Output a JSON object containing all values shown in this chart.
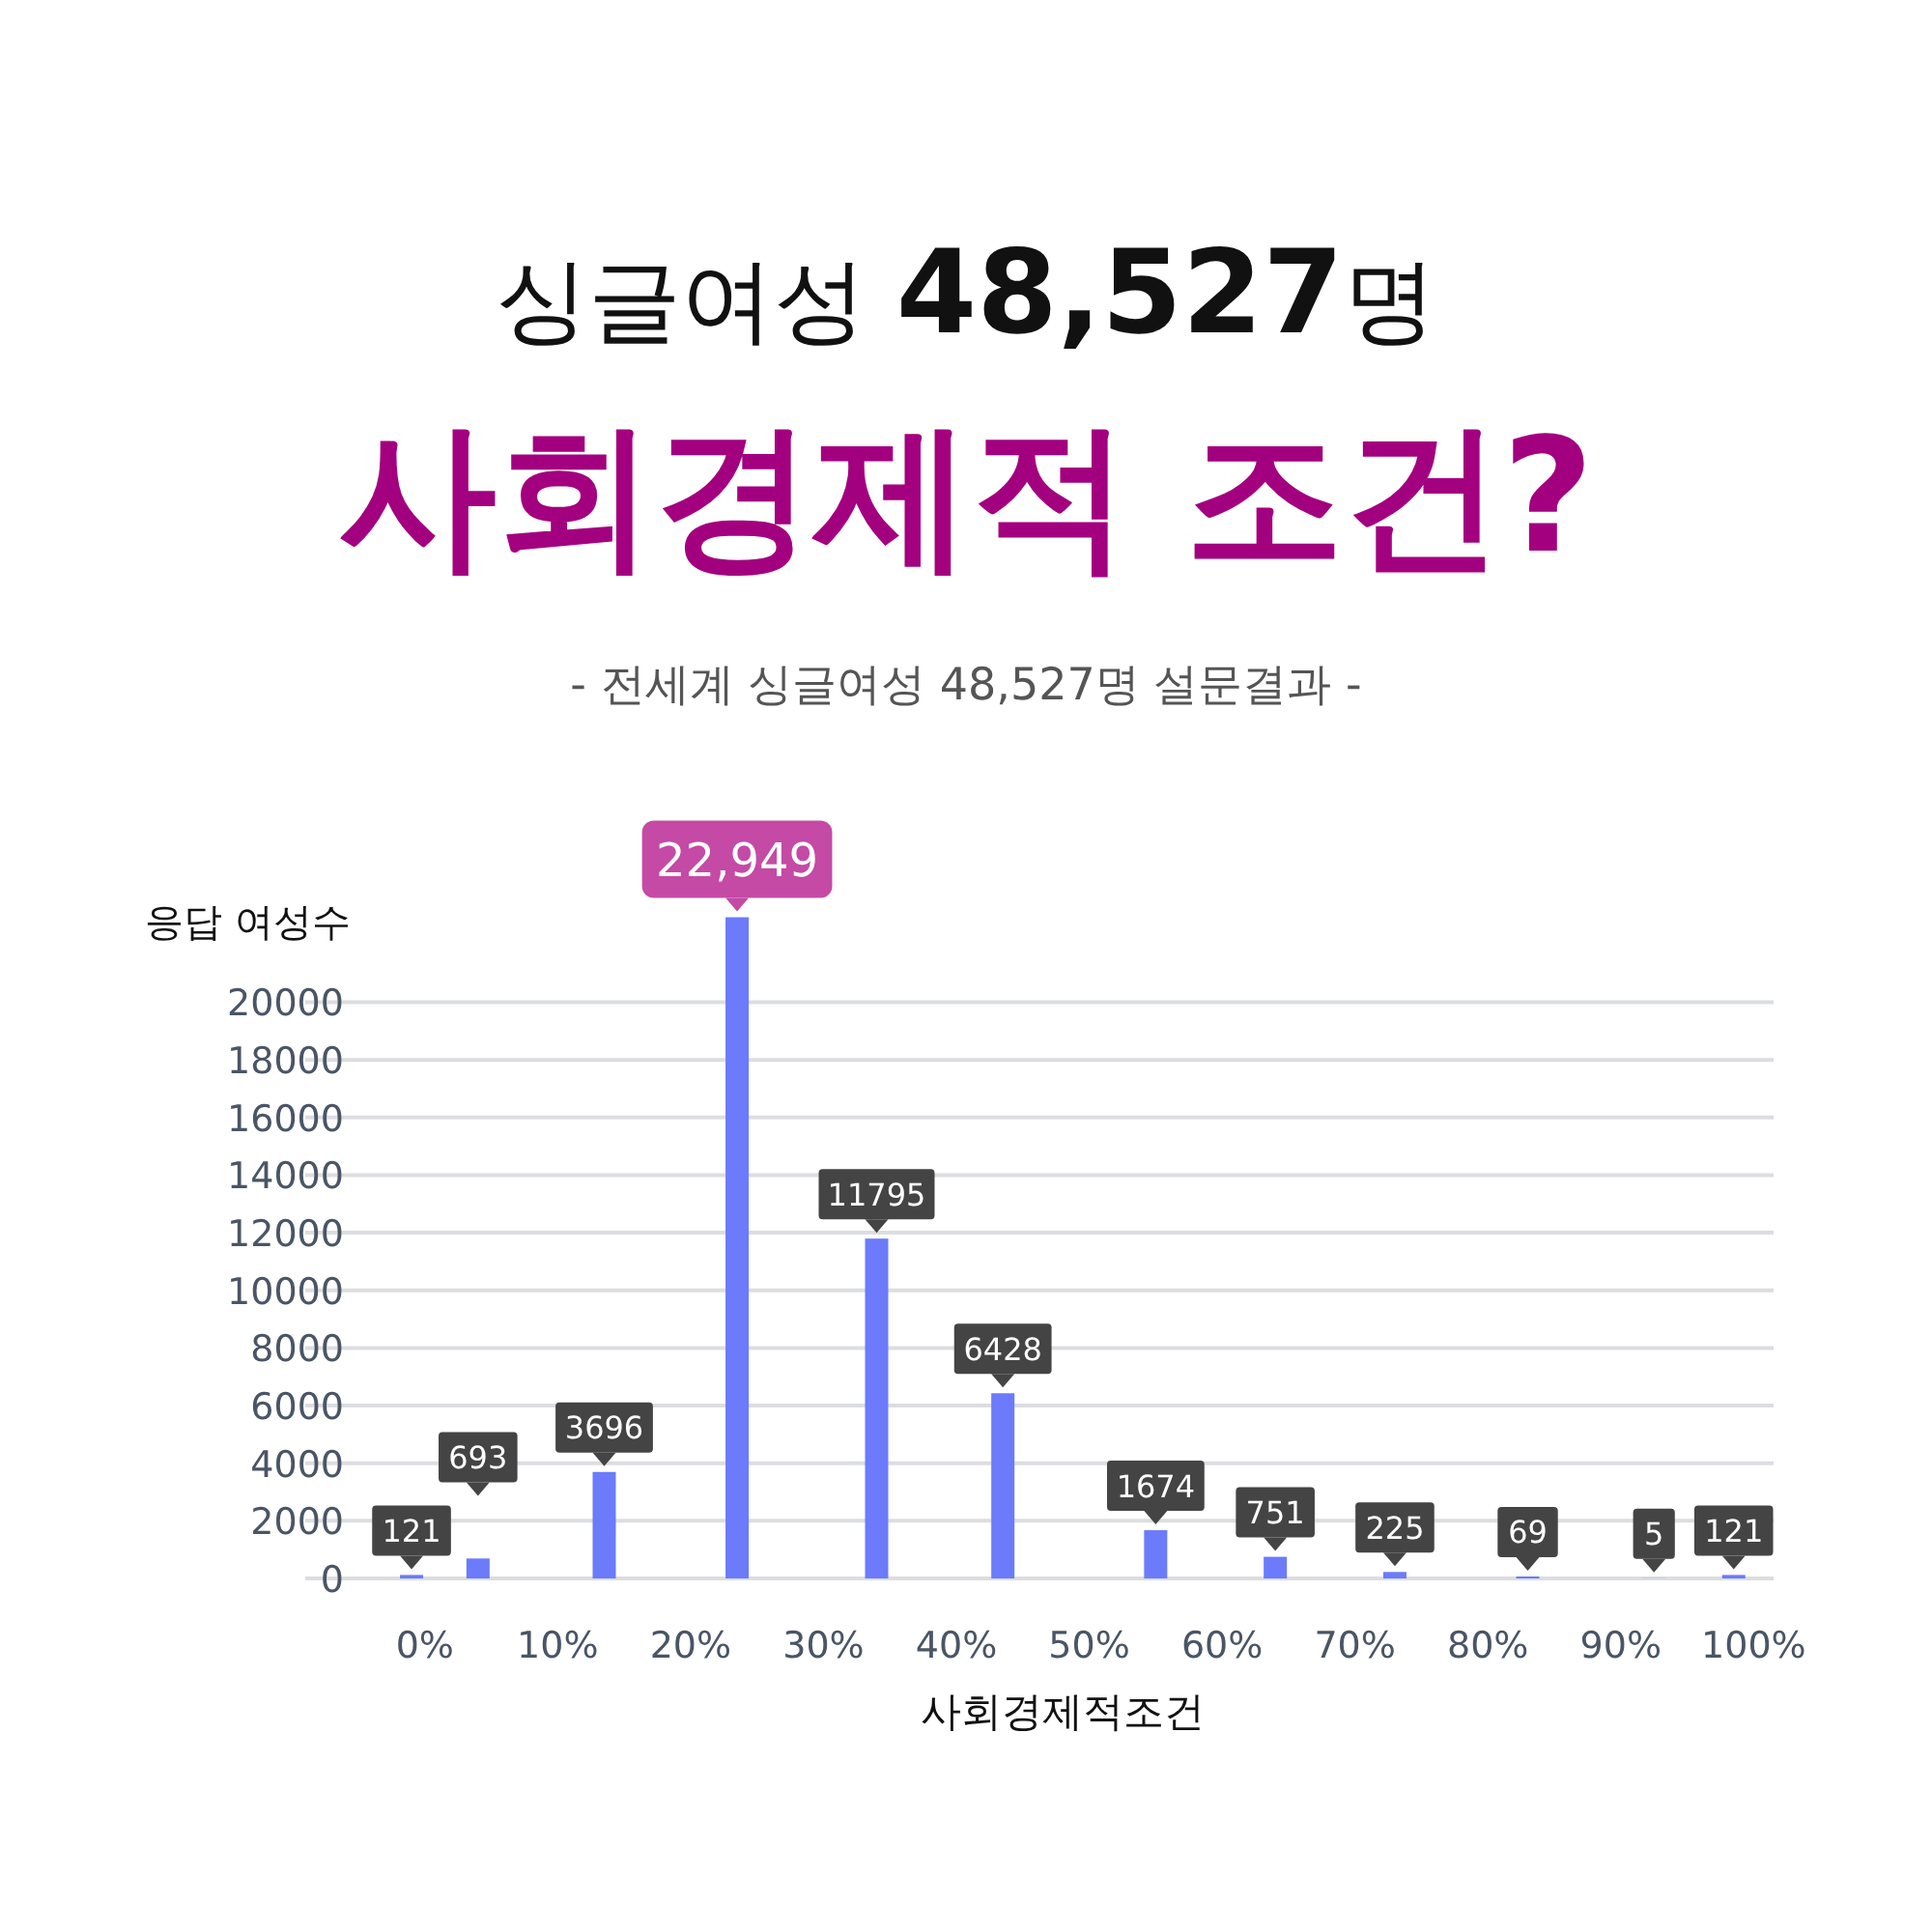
{
  "chart_data": {
    "type": "bar",
    "title": "싱글여성 **48,527**명",
    "subtitle": "사회경제적 조건?",
    "annotations": [
      "- 전세계 싱글여성 48,527명 설문결과 -"
    ],
    "xlabel": "사회경제적조건",
    "ylabel": "응답 여성수",
    "x": [
      -1,
      4,
      13.5,
      23.5,
      34,
      43.5,
      55,
      64,
      73,
      83,
      92.5,
      98.5
    ],
    "values": [
      121,
      693,
      3696,
      22949,
      11795,
      6428,
      1674,
      751,
      225,
      69,
      5,
      121
    ],
    "value_labels": [
      "121",
      "693",
      "3696",
      "22,949",
      "11795",
      "6428",
      "1674",
      "751",
      "225",
      "69",
      "5",
      "121"
    ],
    "color": "#6b7bfa",
    "xlim": [
      -9,
      101.5
    ],
    "ylim": [
      0,
      23000
    ],
    "xticks": [
      {
        "value": 0,
        "label": "0%"
      },
      {
        "value": 10,
        "label": "10%"
      },
      {
        "value": 20,
        "label": "20%"
      },
      {
        "value": 30,
        "label": "30%"
      },
      {
        "value": 40,
        "label": "40%"
      },
      {
        "value": 50,
        "label": "50%"
      },
      {
        "value": 60,
        "label": "60%"
      },
      {
        "value": 70,
        "label": "70%"
      },
      {
        "value": 80,
        "label": "80%"
      },
      {
        "value": 90,
        "label": "90%"
      },
      {
        "value": 100,
        "label": "100%"
      }
    ],
    "yticks": [
      0,
      2000,
      4000,
      6000,
      8000,
      10000,
      12000,
      14000,
      16000,
      18000,
      20000
    ],
    "grid": "y"
  }
}
